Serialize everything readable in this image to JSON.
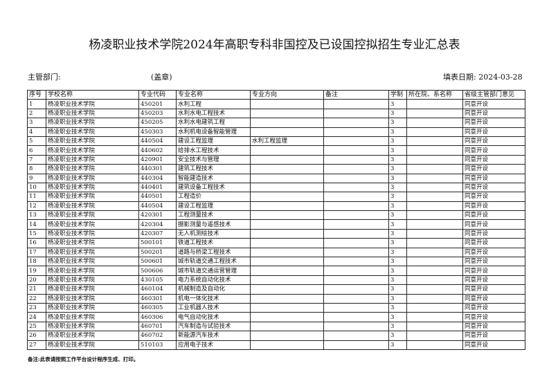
{
  "title": "杨凌职业技术学院2024年高职专科非国控及已设国控拟招生专业汇总表",
  "header": {
    "department_label": "主管部门:",
    "seal_label": "(盖章)",
    "date_label": "填表日期: 2024-03-28"
  },
  "columns": [
    "序号",
    "学校名称",
    "专业代码",
    "专业名称",
    "专业方向",
    "备注",
    "学制",
    "所在院、系名称",
    "省级主管部门意见"
  ],
  "rows": [
    [
      "1",
      "杨凌职业技术学院",
      "450201",
      "水利工程",
      "",
      "",
      "3",
      "",
      "同意开设"
    ],
    [
      "2",
      "杨凌职业技术学院",
      "450203",
      "水利水电工程技术",
      "",
      "",
      "3",
      "",
      "同意开设"
    ],
    [
      "3",
      "杨凌职业技术学院",
      "450205",
      "水利水电建筑工程",
      "",
      "",
      "3",
      "",
      "同意开设"
    ],
    [
      "4",
      "杨凌职业技术学院",
      "450303",
      "水利机电设备智能管理",
      "",
      "",
      "3",
      "",
      "同意开设"
    ],
    [
      "5",
      "杨凌职业技术学院",
      "440504",
      "建设工程监理",
      "水利工程监理",
      "",
      "3",
      "",
      "同意开设"
    ],
    [
      "6",
      "杨凌职业技术学院",
      "440602",
      "给排水工程技术",
      "",
      "",
      "3",
      "",
      "同意开设"
    ],
    [
      "7",
      "杨凌职业技术学院",
      "420901",
      "安全技术与管理",
      "",
      "",
      "3",
      "",
      "同意开设"
    ],
    [
      "8",
      "杨凌职业技术学院",
      "440301",
      "建筑工程技术",
      "",
      "",
      "3",
      "",
      "同意开设"
    ],
    [
      "9",
      "杨凌职业技术学院",
      "440304",
      "智能建造技术",
      "",
      "",
      "3",
      "",
      "同意开设"
    ],
    [
      "10",
      "杨凌职业技术学院",
      "440401",
      "建筑设备工程技术",
      "",
      "",
      "3",
      "",
      "同意开设"
    ],
    [
      "11",
      "杨凌职业技术学院",
      "440501",
      "工程造价",
      "",
      "",
      "3",
      "",
      "同意开设"
    ],
    [
      "12",
      "杨凌职业技术学院",
      "440504",
      "建设工程监理",
      "",
      "",
      "3",
      "",
      "同意开设"
    ],
    [
      "13",
      "杨凌职业技术学院",
      "420301",
      "工程测量技术",
      "",
      "",
      "3",
      "",
      "同意开设"
    ],
    [
      "14",
      "杨凌职业技术学院",
      "420304",
      "摄影测量与遥感技术",
      "",
      "",
      "3",
      "",
      "同意开设"
    ],
    [
      "15",
      "杨凌职业技术学院",
      "420307",
      "无人机测绘技术",
      "",
      "",
      "3",
      "",
      "同意开设"
    ],
    [
      "16",
      "杨凌职业技术学院",
      "500101",
      "铁道工程技术",
      "",
      "",
      "3",
      "",
      "同意开设"
    ],
    [
      "17",
      "杨凌职业技术学院",
      "500201",
      "道路与桥梁工程技术",
      "",
      "",
      "3",
      "",
      "同意开设"
    ],
    [
      "18",
      "杨凌职业技术学院",
      "500601",
      "城市轨道交通工程技术",
      "",
      "",
      "3",
      "",
      "同意开设"
    ],
    [
      "19",
      "杨凌职业技术学院",
      "500606",
      "城市轨道交通运营管理",
      "",
      "",
      "3",
      "",
      "同意开设"
    ],
    [
      "20",
      "杨凌职业技术学院",
      "430105",
      "电力系统自动化技术",
      "",
      "",
      "3",
      "",
      "同意开设"
    ],
    [
      "21",
      "杨凌职业技术学院",
      "460104",
      "机械制造及自动化",
      "",
      "",
      "3",
      "",
      "同意开设"
    ],
    [
      "22",
      "杨凌职业技术学院",
      "460301",
      "机电一体化技术",
      "",
      "",
      "3",
      "",
      "同意开设"
    ],
    [
      "23",
      "杨凌职业技术学院",
      "460305",
      "工业机器人技术",
      "",
      "",
      "3",
      "",
      "同意开设"
    ],
    [
      "24",
      "杨凌职业技术学院",
      "460306",
      "电气自动化技术",
      "",
      "",
      "3",
      "",
      "同意开设"
    ],
    [
      "25",
      "杨凌职业技术学院",
      "460701",
      "汽车制造与试验技术",
      "",
      "",
      "3",
      "",
      "同意开设"
    ],
    [
      "26",
      "杨凌职业技术学院",
      "460702",
      "新能源汽车技术",
      "",
      "",
      "3",
      "",
      "同意开设"
    ],
    [
      "27",
      "杨凌职业技术学院",
      "510103",
      "应用电子技术",
      "",
      "",
      "3",
      "",
      "同意开设"
    ]
  ],
  "note": "备注:此表请按照工作平台设计程序生成、打印。"
}
